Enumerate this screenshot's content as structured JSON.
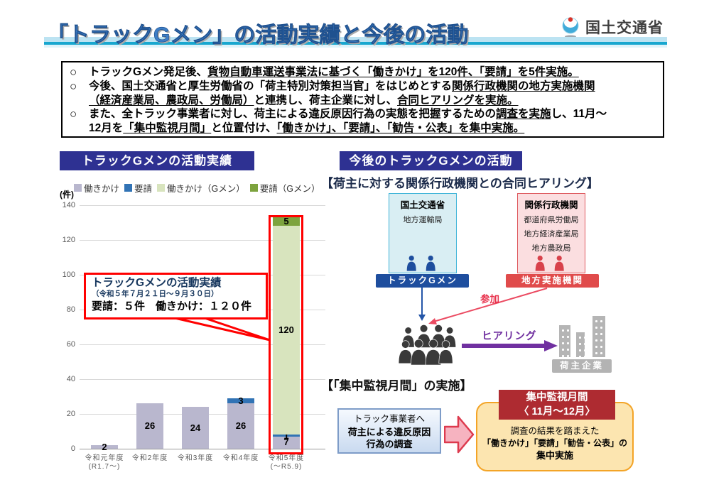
{
  "header": {
    "title": "「トラックGメン」の活動実績と今後の活動",
    "agency": "国土交通省"
  },
  "bullets": [
    {
      "lines": [
        {
          "marker": "○",
          "segments": [
            {
              "t": "トラックGメン発足後、",
              "u": false
            },
            {
              "t": "貨物自動車運送事業法に基づく「働きかけ」を120件、「要請」を5件実施。",
              "u": true
            }
          ]
        }
      ]
    },
    {
      "lines": [
        {
          "marker": "○",
          "segments": [
            {
              "t": "今後、国土交通省と厚生労働省の「荷主特別対策担当官」をはじめとする",
              "u": false
            },
            {
              "t": "関係行政機関の地方実施機関",
              "u": true
            }
          ]
        },
        {
          "marker": "",
          "segments": [
            {
              "t": "（経済産業局、農政局、労働局）",
              "u": true
            },
            {
              "t": "と連携し、荷主企業に対し、",
              "u": false
            },
            {
              "t": "合同ヒアリングを実施。",
              "u": true
            }
          ]
        }
      ]
    },
    {
      "lines": [
        {
          "marker": "○",
          "segments": [
            {
              "t": "また、全トラック事業者に対し、荷主による違反原因行為の実態を把握するための",
              "u": false
            },
            {
              "t": "調査を実施",
              "u": true
            },
            {
              "t": "し、11月～",
              "u": false
            }
          ]
        },
        {
          "marker": "",
          "segments": [
            {
              "t": "12月を",
              "u": false
            },
            {
              "t": "「集中監視月間」",
              "u": true
            },
            {
              "t": "と位置付け、",
              "u": false
            },
            {
              "t": "「働きかけ」、「要請」、「勧告・公表」を集中実施。",
              "u": true
            }
          ]
        }
      ]
    }
  ],
  "chart_data": {
    "type": "bar",
    "stacked": true,
    "title": "トラックGメンの活動実績",
    "unit_label": "(件)",
    "categories": [
      [
        "令和元年度",
        "(R1.7～)"
      ],
      [
        "令和2年度"
      ],
      [
        "令和3年度"
      ],
      [
        "令和4年度"
      ],
      [
        "令和5年度",
        "(～R5.9)"
      ]
    ],
    "series": [
      {
        "name": "働きかけ",
        "color": "#B9B7CE",
        "values": [
          2,
          26,
          24,
          26,
          7
        ]
      },
      {
        "name": "要請",
        "color": "#3173B5",
        "values": [
          0,
          0,
          0,
          3,
          1
        ]
      },
      {
        "name": "働きかけ（Gメン）",
        "color": "#D8E4BE",
        "values": [
          0,
          0,
          0,
          0,
          120
        ]
      },
      {
        "name": "要請（Gメン）",
        "color": "#7DA33E",
        "values": [
          0,
          0,
          0,
          0,
          5
        ]
      }
    ],
    "ylim": [
      0,
      140
    ],
    "yticks": [
      0,
      20,
      40,
      60,
      80,
      100,
      120,
      140
    ],
    "grid": true,
    "legend_position": "top",
    "highlight_category_index": 4
  },
  "callout": {
    "line1": "トラックGメンの活動実績",
    "line2": "（令和５年７月２１日～９月３０日）",
    "line3": "要請：５件　働きかけ：１２０件"
  },
  "right": {
    "header": "今後のトラックGメンの活動",
    "hearing_heading": "【荷主に対する関係行政機関との合同ヒアリング】",
    "mlit_panel": {
      "title": "国土交通省",
      "items": [
        "地方運輸局"
      ],
      "label": "トラックGメン"
    },
    "agencies_panel": {
      "title": "関係行政機関",
      "items": [
        "都道府県労働局",
        "地方経済産業局",
        "地方農政局"
      ],
      "label": "地方実施機関"
    },
    "participate_label": "参加",
    "hearing_label": "ヒアリング",
    "shipper_label": "荷主企業",
    "monitoring_heading": "【「集中監視月間」の実施】",
    "survey_box": {
      "line1": "トラック事業者へ",
      "line2": "荷主による違反原因",
      "line3": "行為の調査"
    },
    "monitoring_box": {
      "title_line1": "集中監視月間",
      "title_line2": "〈 11月～12月〉",
      "body_line1": "調査の結果を踏まえた",
      "body_line2": "「働きかけ」「要請」「勧告・公表」の",
      "body_line3": "集中実施"
    }
  },
  "colors": {
    "header_navy": "#2E3192",
    "title_blue": "#3E7EC6",
    "highlight_red": "#FF0000",
    "gmen_blue": "#1E4E9E",
    "local_red": "#E04B4B",
    "hearing_purple": "#7030A0",
    "participate_pink": "#E8304B",
    "monitoring_darkred": "#AE2B31",
    "orange_border": "#F3A427",
    "orange_fill": "#FCE5B0"
  }
}
